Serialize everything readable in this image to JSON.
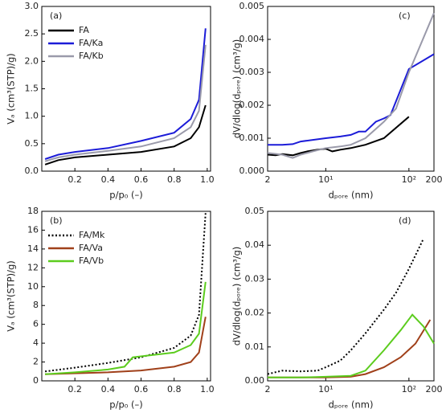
{
  "chart_data": [
    {
      "type": "line",
      "label": "(a)",
      "xlabel": "p/p₀ (–)",
      "ylabel": "Vₐ (cm³(STP)/g)",
      "xlim": [
        0,
        1.02
      ],
      "xticks": [
        0.2,
        0.4,
        0.6,
        0.8,
        {
          "value": 1.0,
          "label": "1.0"
        }
      ],
      "ylim": [
        0,
        3.0
      ],
      "yticks": [
        {
          "value": 0,
          "label": "0.0"
        },
        0.5,
        {
          "value": 1.0,
          "label": "1.0"
        },
        1.5,
        {
          "value": 2.0,
          "label": "2.0"
        },
        2.5,
        {
          "value": 3.0,
          "label": "3.0"
        }
      ],
      "legend": "upper left",
      "series": [
        {
          "name": "FA",
          "color": "#000000",
          "x": [
            0.02,
            0.1,
            0.2,
            0.4,
            0.6,
            0.8,
            0.9,
            0.95,
            0.99
          ],
          "values": [
            0.12,
            0.2,
            0.25,
            0.3,
            0.35,
            0.45,
            0.6,
            0.8,
            1.2
          ]
        },
        {
          "name": "FA/Ka",
          "color": "#1c1cd8",
          "x": [
            0.02,
            0.1,
            0.2,
            0.4,
            0.6,
            0.8,
            0.9,
            0.95,
            0.99
          ],
          "values": [
            0.22,
            0.3,
            0.35,
            0.42,
            0.55,
            0.7,
            0.95,
            1.3,
            2.6
          ]
        },
        {
          "name": "FA/Kb",
          "color": "#9a9aaa",
          "x": [
            0.02,
            0.1,
            0.2,
            0.4,
            0.6,
            0.8,
            0.9,
            0.95,
            0.99
          ],
          "values": [
            0.18,
            0.25,
            0.3,
            0.37,
            0.45,
            0.6,
            0.8,
            1.1,
            2.3
          ]
        }
      ]
    },
    {
      "type": "line",
      "label": "(c)",
      "xlabel": "dₚₒᵣₑ (nm)",
      "ylabel": "dV/dlog(dₚₒᵣₑ) (cm³/g)",
      "xscale": "log",
      "xlim": [
        2,
        200
      ],
      "xticks": [
        2,
        {
          "value": 10,
          "label": "10¹"
        },
        {
          "value": 100,
          "label": "10²"
        },
        200
      ],
      "ylim": [
        0,
        0.005
      ],
      "yticks": [
        {
          "value": 0,
          "label": "0.000"
        },
        0.001,
        0.002,
        0.003,
        0.004,
        0.005
      ],
      "series": [
        {
          "name": "FA",
          "color": "#000000",
          "x": [
            2,
            2.5,
            3,
            4,
            5,
            6,
            8,
            10,
            12,
            15,
            20,
            30,
            50,
            100
          ],
          "values": [
            0.0005,
            0.00048,
            0.00052,
            0.00048,
            0.00055,
            0.0006,
            0.00065,
            0.00068,
            0.0006,
            0.00065,
            0.0007,
            0.0008,
            0.001,
            0.00165
          ]
        },
        {
          "name": "FA/Ka",
          "color": "#1c1cd8",
          "x": [
            2,
            3,
            4,
            5,
            7,
            10,
            15,
            20,
            25,
            30,
            40,
            50,
            60,
            100,
            200
          ],
          "values": [
            0.0008,
            0.0008,
            0.00082,
            0.0009,
            0.00095,
            0.001,
            0.00105,
            0.0011,
            0.0012,
            0.0012,
            0.0015,
            0.0016,
            0.0017,
            0.0031,
            0.00355
          ]
        },
        {
          "name": "FA/Kb",
          "color": "#9a9aaa",
          "x": [
            2,
            3,
            4,
            5,
            7,
            10,
            15,
            20,
            30,
            50,
            70,
            100,
            200
          ],
          "values": [
            0.00055,
            0.0005,
            0.0004,
            0.0005,
            0.0006,
            0.0007,
            0.00075,
            0.0008,
            0.001,
            0.0015,
            0.0019,
            0.003,
            0.0048
          ]
        }
      ]
    },
    {
      "type": "line",
      "label": "(b)",
      "xlabel": "p/p₀ (–)",
      "ylabel": "Vₐ (cm³(STP)/g)",
      "xlim": [
        0,
        1.02
      ],
      "xticks": [
        0.2,
        0.4,
        0.6,
        0.8,
        {
          "value": 1.0,
          "label": "1.0"
        }
      ],
      "ylim": [
        0,
        18
      ],
      "yticks": [
        0,
        2,
        4,
        6,
        8,
        10,
        12,
        14,
        16,
        18
      ],
      "legend": "upper left",
      "series": [
        {
          "name": "FA/Mk",
          "color": "#000000",
          "linestyle": "dotted",
          "x": [
            0.02,
            0.2,
            0.4,
            0.6,
            0.8,
            0.9,
            0.95,
            0.99
          ],
          "values": [
            1.0,
            1.4,
            1.9,
            2.5,
            3.5,
            4.8,
            7,
            17.8
          ]
        },
        {
          "name": "FA/Va",
          "color": "#a0401a",
          "x": [
            0.02,
            0.2,
            0.4,
            0.6,
            0.8,
            0.9,
            0.95,
            0.99
          ],
          "values": [
            0.7,
            0.8,
            0.9,
            1.1,
            1.5,
            2,
            3,
            6.8
          ]
        },
        {
          "name": "FA/Vb",
          "color": "#5ccc1e",
          "x": [
            0.02,
            0.2,
            0.4,
            0.5,
            0.55,
            0.6,
            0.8,
            0.9,
            0.95,
            0.99
          ],
          "values": [
            0.7,
            0.9,
            1.2,
            1.5,
            2.5,
            2.6,
            3,
            3.8,
            5,
            10.5
          ]
        }
      ]
    },
    {
      "type": "line",
      "label": "(d)",
      "xlabel": "dₚₒᵣₑ (nm)",
      "ylabel": "dV/dlog(dₚₒᵣₑ) (cm³/g)",
      "xscale": "log",
      "xlim": [
        2,
        200
      ],
      "xticks": [
        2,
        {
          "value": 10,
          "label": "10¹"
        },
        {
          "value": 100,
          "label": "10²"
        },
        200
      ],
      "ylim": [
        0,
        0.05
      ],
      "yticks": [
        {
          "value": 0,
          "label": "0.00"
        },
        0.01,
        0.02,
        0.03,
        0.04,
        0.05
      ],
      "series": [
        {
          "name": "FA/Mk",
          "color": "#000000",
          "linestyle": "dotted",
          "x": [
            2,
            3,
            5,
            8,
            10,
            15,
            20,
            30,
            50,
            70,
            100,
            150
          ],
          "values": [
            0.002,
            0.003,
            0.0028,
            0.003,
            0.004,
            0.006,
            0.009,
            0.014,
            0.021,
            0.026,
            0.033,
            0.042
          ]
        },
        {
          "name": "FA/Va",
          "color": "#a0401a",
          "x": [
            2,
            5,
            10,
            20,
            30,
            50,
            80,
            120,
            180
          ],
          "values": [
            0.001,
            0.001,
            0.001,
            0.0012,
            0.002,
            0.004,
            0.007,
            0.011,
            0.018
          ]
        },
        {
          "name": "FA/Vb",
          "color": "#5ccc1e",
          "x": [
            2,
            5,
            10,
            20,
            30,
            50,
            80,
            110,
            150,
            200
          ],
          "values": [
            0.001,
            0.001,
            0.0012,
            0.0015,
            0.003,
            0.009,
            0.015,
            0.0195,
            0.016,
            0.011
          ]
        }
      ]
    }
  ]
}
